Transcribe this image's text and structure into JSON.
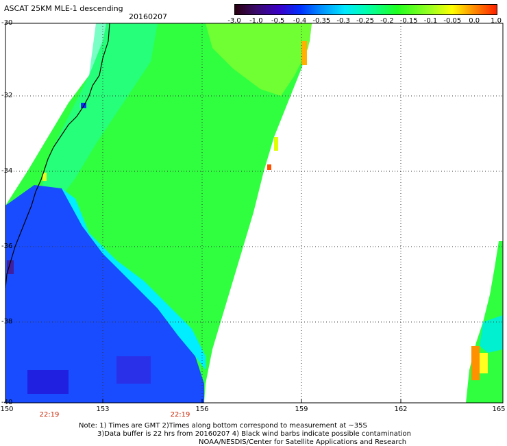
{
  "header": {
    "title": "ASCAT 25KM MLE-1 descending",
    "date": "20160207"
  },
  "colorbar": {
    "ticks": [
      "-3.0",
      "-1.0",
      "-0.5",
      "-0.4",
      "-0.35",
      "-0.3",
      "-0.25",
      "-0.2",
      "-0.15",
      "-0.1",
      "-0.05",
      "0.0",
      "1.0"
    ]
  },
  "axes": {
    "lat_labels": [
      "-30",
      "-32",
      "-34",
      "-36",
      "-38",
      "-40"
    ],
    "lon_labels": [
      "150",
      "153",
      "156",
      "159",
      "162",
      "165"
    ]
  },
  "times": [
    "22:19",
    "22:19"
  ],
  "notes": {
    "line1": "Note: 1) Times are GMT 2)Times along bottom correspond to measurement at ~35S",
    "line2": "3)Data buffer is 22 hrs from 20160207 4) Black wind barbs indicate possible contamination",
    "line3": "NOAA/NESDIS/Center for Satellite Applications and Research"
  },
  "colors": {
    "ocean_blue": "#1a4cff",
    "mid_cyan": "#00f0ff",
    "green": "#20ff30",
    "yellow": "#e8ff00",
    "orange": "#ff9000",
    "red": "#ff3000",
    "grid": "#333333",
    "time_label": "#cc2200"
  }
}
